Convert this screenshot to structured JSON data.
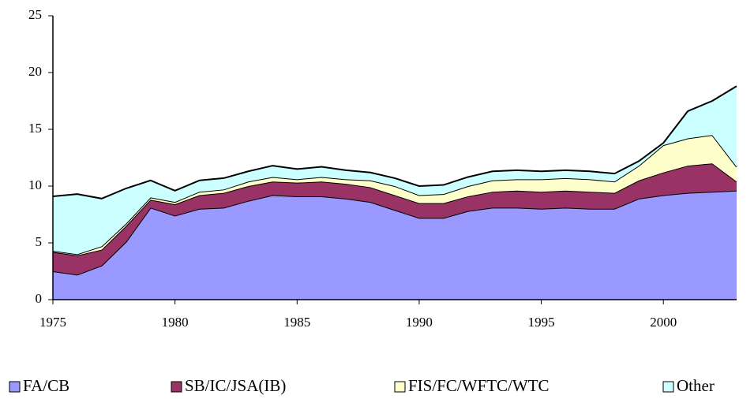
{
  "chart_data": {
    "type": "stacked_area",
    "x": [
      1975,
      1976,
      1977,
      1978,
      1979,
      1980,
      1981,
      1982,
      1983,
      1984,
      1985,
      1986,
      1987,
      1988,
      1989,
      1990,
      1991,
      1992,
      1993,
      1994,
      1995,
      1996,
      1997,
      1998,
      1999,
      2000,
      2001,
      2002,
      2003
    ],
    "series": [
      {
        "name": "FA/CB",
        "color": "#9999ff",
        "values": [
          2.5,
          2.2,
          3.0,
          5.1,
          8.1,
          7.4,
          8.0,
          8.1,
          8.7,
          9.2,
          9.1,
          9.1,
          8.9,
          8.6,
          7.9,
          7.2,
          7.2,
          7.8,
          8.1,
          8.1,
          8.0,
          8.1,
          8.0,
          8.0,
          8.9,
          9.2,
          9.4,
          9.5,
          9.6
        ]
      },
      {
        "name": "SB/IC/JSA(IB)",
        "color": "#993366",
        "values": [
          1.7,
          1.7,
          1.4,
          1.4,
          0.7,
          1.0,
          1.2,
          1.3,
          1.3,
          1.2,
          1.2,
          1.3,
          1.3,
          1.3,
          1.3,
          1.3,
          1.3,
          1.3,
          1.4,
          1.5,
          1.5,
          1.5,
          1.5,
          1.4,
          1.6,
          2.0,
          2.4,
          2.5,
          0.8
        ]
      },
      {
        "name": "FIS/FC/WFTC/WTC",
        "color": "#ffffcc",
        "values": [
          0.1,
          0.1,
          0.3,
          0.2,
          0.2,
          0.2,
          0.3,
          0.3,
          0.4,
          0.4,
          0.3,
          0.4,
          0.4,
          0.6,
          0.8,
          0.7,
          0.8,
          0.9,
          1.0,
          1.0,
          1.1,
          1.1,
          1.1,
          1.0,
          1.3,
          2.4,
          2.4,
          2.5,
          1.3
        ]
      },
      {
        "name": "Other",
        "color": "#ccffff",
        "values": [
          4.8,
          5.3,
          4.2,
          3.1,
          1.5,
          1.0,
          1.0,
          1.0,
          0.9,
          1.0,
          0.9,
          0.9,
          0.8,
          0.7,
          0.7,
          0.8,
          0.8,
          0.8,
          0.8,
          0.8,
          0.7,
          0.7,
          0.7,
          0.7,
          0.4,
          0.2,
          2.4,
          3.0,
          7.1
        ]
      }
    ],
    "xlim": [
      1975,
      2003
    ],
    "xticks": [
      1975,
      1980,
      1985,
      1990,
      1995,
      2000
    ],
    "ylim": [
      0,
      25
    ],
    "yticks": [
      0,
      5,
      10,
      15,
      20,
      25
    ],
    "grid": false,
    "legend": "bottom"
  }
}
